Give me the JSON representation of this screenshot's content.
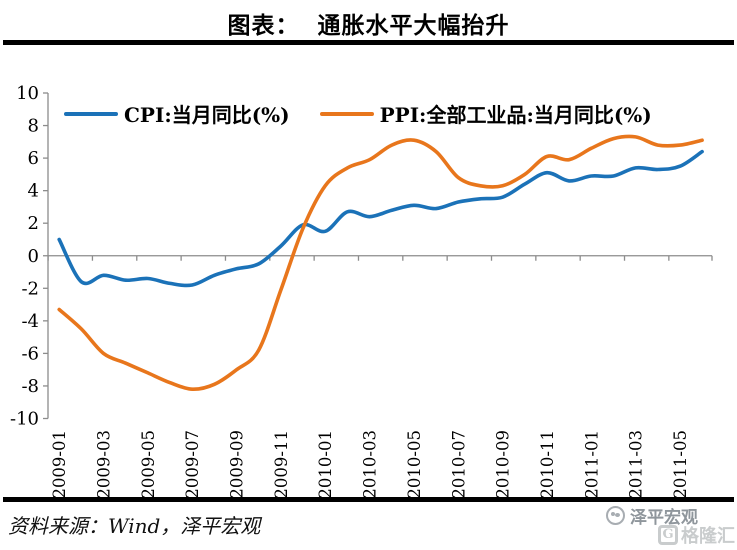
{
  "title": "图表：  通胀水平大幅抬升",
  "source_note": "资料来源：Wind，泽平宏观",
  "watermarks": {
    "brand": "泽平宏观",
    "platform": "格隆汇",
    "platform_letter": "G"
  },
  "chart_data": {
    "type": "line",
    "title": "通胀水平大幅抬升",
    "x": [
      "2009-01",
      "2009-02",
      "2009-03",
      "2009-04",
      "2009-05",
      "2009-06",
      "2009-07",
      "2009-08",
      "2009-09",
      "2009-10",
      "2009-11",
      "2009-12",
      "2010-01",
      "2010-02",
      "2010-03",
      "2010-04",
      "2010-05",
      "2010-06",
      "2010-07",
      "2010-08",
      "2010-09",
      "2010-10",
      "2010-11",
      "2010-12",
      "2011-01",
      "2011-02",
      "2011-03",
      "2011-04",
      "2011-05",
      "2011-06"
    ],
    "x_label_every": 2,
    "series": [
      {
        "name": "CPI:当月同比(%)",
        "color": "#1B72B8",
        "values": [
          1.0,
          -1.6,
          -1.2,
          -1.5,
          -1.4,
          -1.7,
          -1.8,
          -1.2,
          -0.8,
          -0.5,
          0.6,
          1.9,
          1.5,
          2.7,
          2.4,
          2.8,
          3.1,
          2.9,
          3.3,
          3.5,
          3.6,
          4.4,
          5.1,
          4.6,
          4.9,
          4.9,
          5.4,
          5.3,
          5.5,
          6.4
        ]
      },
      {
        "name": "PPI:全部工业品:当月同比(%)",
        "color": "#E8761C",
        "values": [
          -3.3,
          -4.5,
          -6.0,
          -6.6,
          -7.2,
          -7.8,
          -8.2,
          -7.9,
          -7.0,
          -5.8,
          -2.1,
          1.7,
          4.3,
          5.4,
          5.9,
          6.8,
          7.1,
          6.4,
          4.8,
          4.3,
          4.3,
          5.0,
          6.1,
          5.9,
          6.6,
          7.2,
          7.3,
          6.8,
          6.8,
          7.1
        ]
      }
    ],
    "ylim": [
      -10,
      10
    ],
    "ytick_step": 2,
    "legend_position": "top",
    "grid": "zero-line-only",
    "line_smoothing": true,
    "axis_color": "#8C8C8C"
  }
}
